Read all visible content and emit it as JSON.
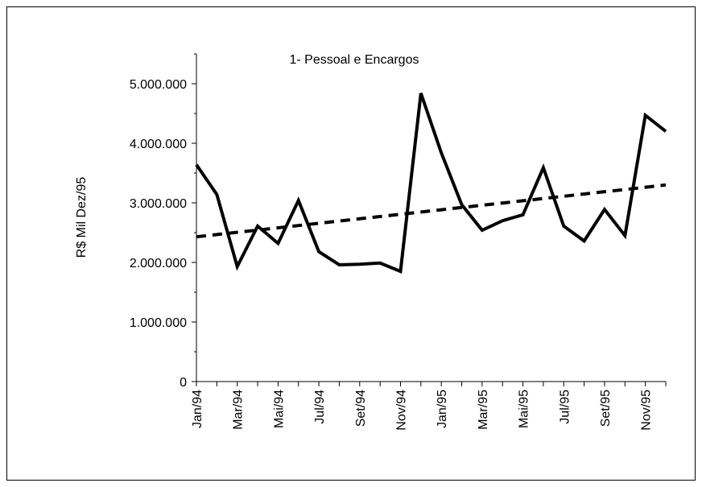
{
  "chart_data": {
    "type": "line",
    "title": "1- Pessoal e Encargos",
    "y_label": "R$ Mil Dez/95",
    "categories": [
      "Jan/94",
      null,
      "Mar/94",
      null,
      "Mai/94",
      null,
      "Jul/94",
      null,
      "Set/94",
      null,
      "Nov/94",
      null,
      "Jan/95",
      null,
      "Mar/95",
      null,
      "Mai/95",
      null,
      "Jul/95",
      null,
      "Set/95",
      null,
      "Nov/95",
      null
    ],
    "series": [
      {
        "color": "#000000",
        "dashed": false,
        "values": [
          3640000,
          3140000,
          1930000,
          2610000,
          2320000,
          3040000,
          2180000,
          1960000,
          1970000,
          1990000,
          1850000,
          4840000,
          3840000,
          2970000,
          2540000,
          2700000,
          2800000,
          3590000,
          2610000,
          2360000,
          2890000,
          2450000,
          4470000,
          4200000
        ]
      },
      {
        "color": "#000000",
        "dashed": true,
        "values": [
          2430000,
          2468000,
          2506000,
          2543000,
          2581000,
          2619000,
          2657000,
          2695000,
          2733000,
          2770000,
          2808000,
          2846000,
          2884000,
          2922000,
          2960000,
          2997000,
          3035000,
          3073000,
          3111000,
          3149000,
          3187000,
          3224000,
          3262000,
          3300000
        ]
      }
    ],
    "ylim": [
      0,
      5500000
    ],
    "yticks": [
      0,
      {
        "value": 1000000,
        "label": "1.000.000"
      },
      {
        "value": 2000000,
        "label": "2.000.000"
      },
      {
        "value": 3000000,
        "label": "3.000.000"
      },
      {
        "value": 4000000,
        "label": "4.000.000"
      },
      {
        "value": 5000000,
        "label": "5.000.000"
      }
    ],
    "yminorticks": [
      500000,
      1500000,
      2500000,
      3500000,
      4500000,
      5500000
    ],
    "grid": false
  }
}
